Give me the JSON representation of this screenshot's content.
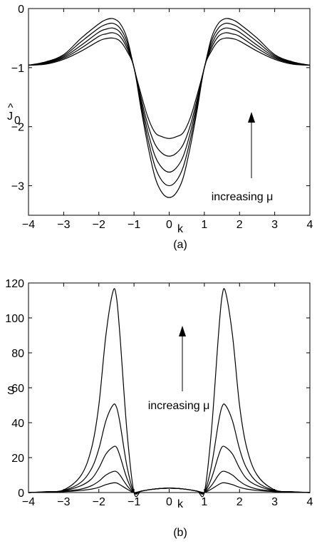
{
  "chart_data": [
    {
      "type": "line",
      "panel_label": "(a)",
      "xlabel": "k",
      "ylabel_main": "J",
      "ylabel_hat": "^",
      "ylabel_sub": "0",
      "xlim": [
        -4,
        4
      ],
      "ylim": [
        -3.5,
        0
      ],
      "xticks": [
        -4,
        -3,
        -2,
        -1,
        0,
        1,
        2,
        3,
        4
      ],
      "xtick_labels": [
        "−4",
        "−3",
        "−2",
        "−1",
        "0",
        "1",
        "2",
        "3",
        "4"
      ],
      "yticks": [
        -3,
        -2,
        -1,
        0
      ],
      "ytick_labels": [
        "−3",
        "−2",
        "−1",
        "0"
      ],
      "annotation": "increasing μ",
      "annotation_arrow": "up",
      "grid": false,
      "x": [
        -4,
        -3.5,
        -3,
        -2.5,
        -2,
        -1.8,
        -1.6,
        -1.4,
        -1.2,
        -1,
        -0.8,
        -0.6,
        -0.4,
        -0.2,
        0,
        0.2,
        0.4,
        0.6,
        0.8,
        1,
        1.2,
        1.4,
        1.6,
        1.8,
        2,
        2.5,
        3,
        3.5,
        4
      ],
      "series": [
        {
          "values": [
            -0.96,
            -0.9,
            -0.78,
            -0.5,
            -0.26,
            -0.19,
            -0.17,
            -0.25,
            -0.5,
            -1.0,
            -1.45,
            -1.85,
            -2.1,
            -2.17,
            -2.2,
            -2.17,
            -2.1,
            -1.85,
            -1.45,
            -1.0,
            -0.5,
            -0.25,
            -0.17,
            -0.19,
            -0.26,
            -0.5,
            -0.78,
            -0.9,
            -0.96
          ]
        },
        {
          "values": [
            -0.96,
            -0.91,
            -0.8,
            -0.56,
            -0.33,
            -0.27,
            -0.25,
            -0.33,
            -0.56,
            -1.0,
            -1.52,
            -1.98,
            -2.3,
            -2.45,
            -2.5,
            -2.45,
            -2.3,
            -1.98,
            -1.52,
            -1.0,
            -0.56,
            -0.33,
            -0.25,
            -0.27,
            -0.33,
            -0.56,
            -0.8,
            -0.91,
            -0.96
          ]
        },
        {
          "values": [
            -0.96,
            -0.92,
            -0.82,
            -0.62,
            -0.4,
            -0.35,
            -0.33,
            -0.4,
            -0.62,
            -1.0,
            -1.58,
            -2.1,
            -2.5,
            -2.7,
            -2.77,
            -2.7,
            -2.5,
            -2.1,
            -1.58,
            -1.0,
            -0.62,
            -0.4,
            -0.33,
            -0.35,
            -0.4,
            -0.62,
            -0.82,
            -0.92,
            -0.96
          ]
        },
        {
          "values": [
            -0.96,
            -0.93,
            -0.84,
            -0.67,
            -0.47,
            -0.43,
            -0.41,
            -0.47,
            -0.67,
            -1.0,
            -1.64,
            -2.22,
            -2.68,
            -2.92,
            -3.0,
            -2.92,
            -2.68,
            -2.22,
            -1.64,
            -1.0,
            -0.67,
            -0.47,
            -0.41,
            -0.43,
            -0.47,
            -0.67,
            -0.84,
            -0.93,
            -0.96
          ]
        },
        {
          "values": [
            -0.96,
            -0.94,
            -0.86,
            -0.72,
            -0.55,
            -0.51,
            -0.5,
            -0.55,
            -0.72,
            -1.0,
            -1.7,
            -2.34,
            -2.86,
            -3.12,
            -3.2,
            -3.12,
            -2.86,
            -2.34,
            -1.7,
            -1.0,
            -0.72,
            -0.55,
            -0.5,
            -0.51,
            -0.55,
            -0.72,
            -0.86,
            -0.94,
            -0.96
          ]
        }
      ]
    },
    {
      "type": "line",
      "panel_label": "(b)",
      "xlabel": "k",
      "ylabel": "S",
      "xlim": [
        -4,
        4
      ],
      "ylim": [
        0,
        120
      ],
      "xticks": [
        -4,
        -3,
        -2,
        -1,
        0,
        1,
        2,
        3,
        4
      ],
      "xtick_labels": [
        "−4",
        "−3",
        "−2",
        "−1",
        "0",
        "1",
        "2",
        "3",
        "4"
      ],
      "yticks": [
        0,
        20,
        40,
        60,
        80,
        100,
        120
      ],
      "ytick_labels": [
        "0",
        "20",
        "40",
        "60",
        "80",
        "100",
        "120"
      ],
      "annotation": "increasing μ",
      "annotation_arrow": "up",
      "grid": false,
      "x": [
        -4,
        -3.5,
        -3,
        -2.5,
        -2.2,
        -2,
        -1.8,
        -1.6,
        -1.5,
        -1.4,
        -1.2,
        -1,
        -0.8,
        -0.5,
        -0.2,
        0,
        0.2,
        0.5,
        0.8,
        1,
        1.2,
        1.4,
        1.5,
        1.6,
        1.8,
        2,
        2.2,
        2.5,
        3,
        3.5,
        4
      ],
      "series": [
        {
          "values": [
            0,
            0.2,
            0.5,
            1.2,
            2,
            3,
            4.5,
            5.5,
            5.5,
            4.5,
            2,
            0,
            0.8,
            1.8,
            2.4,
            2.5,
            2.4,
            1.8,
            0.8,
            0,
            2,
            4.5,
            5.5,
            5.5,
            4.5,
            3,
            2,
            1.2,
            0.5,
            0.2,
            0
          ]
        },
        {
          "values": [
            0,
            0.3,
            0.8,
            2,
            4,
            6.5,
            10,
            12,
            12,
            10,
            4,
            0,
            0.8,
            1.8,
            2.4,
            2.5,
            2.4,
            1.8,
            0.8,
            0,
            4,
            10,
            12,
            12,
            10,
            6.5,
            4,
            2,
            0.8,
            0.3,
            0
          ]
        },
        {
          "values": [
            0,
            0.3,
            1,
            4,
            8,
            14,
            22,
            26,
            26,
            21,
            8,
            0,
            0.8,
            1.8,
            2.4,
            2.5,
            2.4,
            1.8,
            0.8,
            0,
            8,
            21,
            26,
            26,
            22,
            14,
            8,
            4,
            1,
            0.3,
            0
          ]
        },
        {
          "values": [
            0,
            0.4,
            1.2,
            6,
            14,
            25,
            41,
            50,
            49,
            40,
            15,
            0,
            0.8,
            1.8,
            2.4,
            2.5,
            2.4,
            1.8,
            0.8,
            0,
            15,
            40,
            49,
            50,
            41,
            25,
            14,
            6,
            1.2,
            0.4,
            0
          ]
        },
        {
          "values": [
            0,
            0.5,
            1.5,
            10,
            26,
            50,
            90,
            115,
            112,
            90,
            35,
            0,
            0.8,
            1.8,
            2.4,
            2.5,
            2.4,
            1.8,
            0.8,
            0,
            35,
            90,
            112,
            115,
            90,
            50,
            26,
            10,
            1.5,
            0.5,
            0
          ]
        }
      ]
    }
  ]
}
